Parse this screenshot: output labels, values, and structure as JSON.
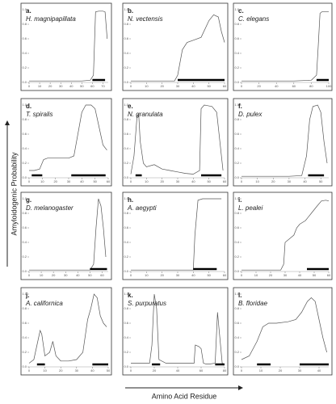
{
  "chart_data": {
    "type": "line",
    "y_axis_label": "Amyloidogenic Probability",
    "x_axis_label": "Amino Acid Residue",
    "ylim": [
      0,
      1
    ],
    "yticks": [
      {
        "value": 0,
        "label": "0.0"
      },
      {
        "value": 0.2,
        "label": "0.2"
      },
      {
        "value": 0.4,
        "label": "0.4"
      },
      {
        "value": 0.6,
        "label": "0.6"
      },
      {
        "value": 0.8,
        "label": "0.8"
      },
      {
        "value": 1,
        "label": "1.0"
      }
    ],
    "panels": [
      {
        "label": "a.",
        "species": "H. magnipapillata",
        "xlim": [
          0,
          75
        ],
        "xticks": [
          0,
          10,
          20,
          30,
          40,
          50,
          60,
          70
        ],
        "x": [
          0,
          10,
          20,
          30,
          40,
          50,
          58,
          61,
          63,
          66,
          70,
          72,
          74
        ],
        "values": [
          0.02,
          0.02,
          0.02,
          0.02,
          0.02,
          0.02,
          0.03,
          0.1,
          0.97,
          0.98,
          0.98,
          0.97,
          0.6
        ],
        "regions": [
          [
            60,
            72
          ]
        ]
      },
      {
        "label": "b.",
        "species": "N. vectensis",
        "xlim": [
          0,
          60
        ],
        "xticks": [
          0,
          10,
          20,
          30,
          40,
          50,
          60
        ],
        "x": [
          0,
          10,
          20,
          28,
          30,
          33,
          36,
          40,
          45,
          50,
          53,
          56,
          58,
          60
        ],
        "values": [
          0.02,
          0.02,
          0.02,
          0.02,
          0.1,
          0.45,
          0.55,
          0.58,
          0.62,
          0.85,
          0.93,
          0.9,
          0.7,
          0.55
        ],
        "regions": [
          [
            30,
            60
          ]
        ]
      },
      {
        "label": "c.",
        "species": "C. elegans",
        "xlim": [
          0,
          100
        ],
        "xticks": [
          0,
          20,
          40,
          60,
          80,
          100
        ],
        "x": [
          0,
          20,
          40,
          60,
          80,
          86,
          88,
          90,
          92,
          96,
          100
        ],
        "values": [
          0.02,
          0.02,
          0.02,
          0.02,
          0.03,
          0.1,
          0.5,
          0.95,
          0.97,
          0.97,
          0.97
        ],
        "regions": [
          [
            86,
            100
          ]
        ]
      },
      {
        "label": "d.",
        "species": "T. spiralis",
        "xlim": [
          0,
          60
        ],
        "xticks": [
          0,
          10,
          20,
          30,
          40,
          50,
          60
        ],
        "x": [
          0,
          4,
          8,
          11,
          14,
          20,
          30,
          34,
          37,
          40,
          43,
          47,
          50,
          53,
          56,
          59
        ],
        "values": [
          0.1,
          0.1,
          0.12,
          0.25,
          0.27,
          0.27,
          0.27,
          0.3,
          0.6,
          0.9,
          1.0,
          1.0,
          0.95,
          0.7,
          0.45,
          0.38
        ],
        "regions": [
          [
            2,
            10
          ],
          [
            32,
            58
          ]
        ]
      },
      {
        "label": "e.",
        "species": "N. granulata",
        "xlim": [
          0,
          60
        ],
        "xticks": [
          0,
          10,
          20,
          30,
          40,
          50,
          60
        ],
        "x": [
          0,
          2,
          4,
          5,
          6,
          8,
          10,
          15,
          20,
          25,
          30,
          35,
          40,
          44,
          45,
          47,
          52,
          55,
          57,
          59
        ],
        "values": [
          0.05,
          0.3,
          0.85,
          0.88,
          0.5,
          0.2,
          0.15,
          0.18,
          0.12,
          0.1,
          0.08,
          0.06,
          0.05,
          0.1,
          0.95,
          1.0,
          0.98,
          0.9,
          0.5,
          0.1
        ],
        "regions": [
          [
            3,
            7
          ],
          [
            45,
            58
          ]
        ]
      },
      {
        "label": "f.",
        "species": "D. pulex",
        "xlim": [
          0,
          55
        ],
        "xticks": [
          0,
          10,
          20,
          30,
          40,
          50
        ],
        "x": [
          0,
          10,
          20,
          30,
          38,
          41,
          43,
          45,
          48,
          50,
          52,
          54
        ],
        "values": [
          0.02,
          0.02,
          0.02,
          0.02,
          0.03,
          0.3,
          0.8,
          0.98,
          1.0,
          0.9,
          0.5,
          0.2
        ],
        "regions": [
          [
            42,
            52
          ]
        ]
      },
      {
        "label": "g.",
        "species": "D. melanogaster",
        "xlim": [
          0,
          65
        ],
        "xticks": [
          0,
          10,
          20,
          30,
          40,
          50,
          60
        ],
        "x": [
          0,
          10,
          20,
          30,
          40,
          50,
          53,
          55,
          57,
          59,
          61,
          63
        ],
        "values": [
          0.02,
          0.02,
          0.02,
          0.02,
          0.02,
          0.02,
          0.1,
          0.6,
          1.0,
          0.9,
          0.6,
          0.2
        ],
        "regions": [
          [
            50,
            64
          ]
        ]
      },
      {
        "label": "h.",
        "species": "A. aegypti",
        "xlim": [
          0,
          60
        ],
        "xticks": [
          0,
          10,
          20,
          30,
          40,
          50,
          60
        ],
        "x": [
          0,
          10,
          20,
          30,
          40,
          41,
          43,
          46,
          50,
          55,
          58
        ],
        "values": [
          0.02,
          0.02,
          0.02,
          0.02,
          0.02,
          0.5,
          0.98,
          1.0,
          1.0,
          1.0,
          1.0
        ],
        "regions": [
          [
            40,
            55
          ]
        ]
      },
      {
        "label": "i.",
        "species": "L. pealei",
        "xlim": [
          0,
          60
        ],
        "xticks": [
          0,
          10,
          20,
          30,
          40,
          50,
          60
        ],
        "x": [
          0,
          10,
          20,
          27,
          29,
          30,
          33,
          36,
          38,
          40,
          44,
          48,
          52,
          55,
          58,
          60
        ],
        "values": [
          0.02,
          0.02,
          0.02,
          0.02,
          0.1,
          0.4,
          0.45,
          0.5,
          0.6,
          0.65,
          0.7,
          0.8,
          0.9,
          0.97,
          0.98,
          0.97
        ],
        "regions": [
          [
            45,
            60
          ]
        ]
      },
      {
        "label": "j.",
        "species": "A. californica",
        "xlim": [
          0,
          50
        ],
        "xticks": [
          0,
          10,
          20,
          30,
          40,
          50
        ],
        "x": [
          0,
          3,
          5,
          7,
          8,
          10,
          13,
          15,
          17,
          20,
          25,
          30,
          34,
          37,
          39,
          41,
          43,
          45,
          47,
          49
        ],
        "values": [
          0.05,
          0.1,
          0.3,
          0.5,
          0.45,
          0.15,
          0.2,
          0.35,
          0.15,
          0.08,
          0.08,
          0.1,
          0.2,
          0.65,
          0.8,
          1.0,
          0.95,
          0.7,
          0.6,
          0.55
        ],
        "regions": [
          [
            5,
            10
          ],
          [
            40,
            50
          ]
        ]
      },
      {
        "label": "k.",
        "species": "S. purpuratus",
        "xlim": [
          0,
          80
        ],
        "xticks": [
          0,
          20,
          40,
          60,
          80
        ],
        "x": [
          0,
          10,
          16,
          18,
          20,
          22,
          24,
          30,
          40,
          50,
          54,
          55,
          58,
          60,
          62,
          64,
          68,
          72,
          74,
          76,
          78,
          80
        ],
        "values": [
          0.05,
          0.05,
          0.05,
          0.3,
          1.0,
          0.8,
          0.1,
          0.05,
          0.05,
          0.05,
          0.05,
          0.3,
          0.28,
          0.25,
          0.05,
          0.04,
          0.04,
          0.05,
          0.75,
          0.4,
          0.05,
          0.03
        ],
        "regions": [
          [
            18,
            25
          ],
          [
            72,
            80
          ]
        ]
      },
      {
        "label": "l.",
        "species": "B. floridae",
        "xlim": [
          0,
          45
        ],
        "xticks": [
          0,
          10,
          20,
          30,
          40
        ],
        "x": [
          0,
          4,
          8,
          11,
          14,
          18,
          24,
          28,
          31,
          34,
          36,
          38,
          40,
          42,
          44
        ],
        "values": [
          0.1,
          0.15,
          0.35,
          0.55,
          0.6,
          0.6,
          0.62,
          0.65,
          0.75,
          0.9,
          0.95,
          0.9,
          0.65,
          0.4,
          0.2
        ],
        "regions": [
          [
            8,
            15
          ],
          [
            30,
            45
          ]
        ]
      }
    ]
  }
}
